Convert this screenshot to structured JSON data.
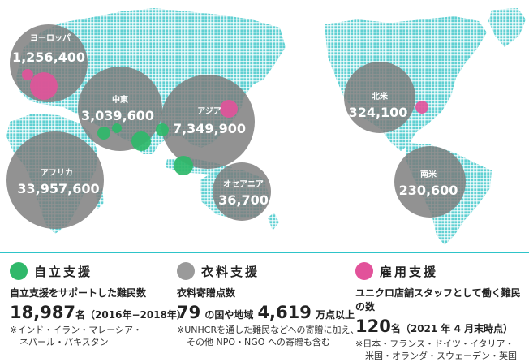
{
  "colors": {
    "land": "#5fd0d2",
    "region_circle": "#7a7a7a",
    "independence": "#2fb86a",
    "clothing": "#9a9a9a",
    "employment": "#e2529a",
    "divider": "#2ec4c9"
  },
  "regions": [
    {
      "id": "europe",
      "name": "ヨーロッパ",
      "value": "1,256,400"
    },
    {
      "id": "middle-east",
      "name": "中東",
      "value": "3,039,600"
    },
    {
      "id": "asia",
      "name": "アジア",
      "value": "7,349,900"
    },
    {
      "id": "africa",
      "name": "アフリカ",
      "value": "33,957,600"
    },
    {
      "id": "oceania",
      "name": "オセアニア",
      "value": "36,700"
    },
    {
      "id": "north-america",
      "name": "北米",
      "value": "324,100"
    },
    {
      "id": "south-america",
      "name": "南米",
      "value": "230,600"
    }
  ],
  "legend": {
    "independence": {
      "title": "自立支援",
      "subtitle": "自立支援をサポートした難民数",
      "number": "18,987",
      "unit": "名（2016年−2018年）",
      "note": [
        "※インド・イラン・マレーシア・",
        "ネパール・パキスタン"
      ]
    },
    "clothing": {
      "title": "衣料支援",
      "subtitle": "衣料寄贈点数",
      "number_a": "79",
      "text_a": "の国や地域",
      "number_b": "4,619",
      "text_b": "万点以上",
      "note": [
        "※UNHCRを通した難民などへの寄贈に加え、",
        "その他 NPO・NGO への寄贈も含む"
      ]
    },
    "employment": {
      "title": "雇用支援",
      "subtitle": "ユニクロ店舗スタッフとして働く難民の数",
      "number": "120",
      "unit": "名（2021 年 4 月末時点）",
      "note": [
        "※日本・フランス・ドイツ・イタリア・",
        "米国・オランダ・スウェーデン・英国"
      ]
    }
  }
}
